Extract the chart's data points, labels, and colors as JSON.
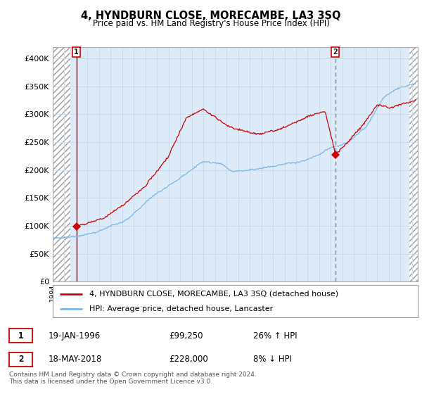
{
  "title": "4, HYNDBURN CLOSE, MORECAMBE, LA3 3SQ",
  "subtitle": "Price paid vs. HM Land Registry's House Price Index (HPI)",
  "footer": "Contains HM Land Registry data © Crown copyright and database right 2024.\nThis data is licensed under the Open Government Licence v3.0.",
  "legend_line1": "4, HYNDBURN CLOSE, MORECAMBE, LA3 3SQ (detached house)",
  "legend_line2": "HPI: Average price, detached house, Lancaster",
  "annotation1_date": "19-JAN-1996",
  "annotation1_price": "£99,250",
  "annotation1_hpi": "26% ↑ HPI",
  "annotation2_date": "18-MAY-2018",
  "annotation2_price": "£228,000",
  "annotation2_hpi": "8% ↓ HPI",
  "xmin": 1994.0,
  "xmax": 2025.5,
  "ymin": 0,
  "ymax": 420000,
  "yticks": [
    0,
    50000,
    100000,
    150000,
    200000,
    250000,
    300000,
    350000,
    400000
  ],
  "ytick_labels": [
    "£0",
    "£50K",
    "£100K",
    "£150K",
    "£200K",
    "£250K",
    "£300K",
    "£350K",
    "£400K"
  ],
  "hpi_color": "#7ab8e8",
  "price_color": "#cc0000",
  "vline1_color": "#cc0000",
  "vline1_style": "-",
  "vline2_color": "#888888",
  "vline2_style": "--",
  "point1_x": 1996.05,
  "point1_y": 99250,
  "point2_x": 2018.38,
  "point2_y": 228000,
  "plot_bg_color": "#ddeaf8",
  "grid_color": "#c8d8e8",
  "hatch_left_end": 1995.5,
  "hatch_right_start": 2024.75
}
